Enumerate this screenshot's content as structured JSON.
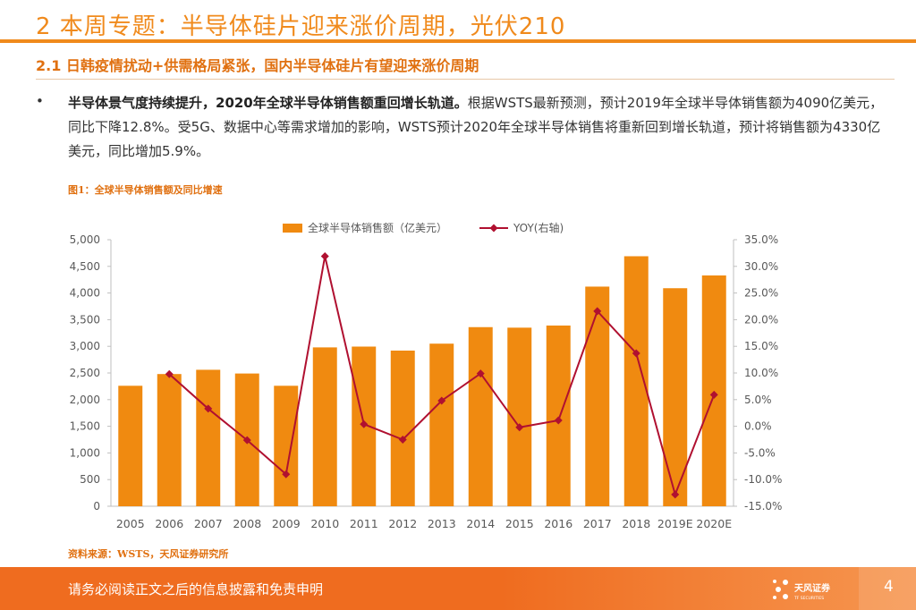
{
  "header": {
    "title": "2 本周专题：半导体硅片迎来涨价周期，光伏210",
    "subtitle": "2.1 日韩疫情扰动+供需格局紧张，国内半导体硅片有望迎来涨价周期"
  },
  "body": {
    "bullet": "•",
    "bold_lead": "半导体景气度持续提升，2020年全球半导体销售额重回增长轨道。",
    "text": "根据WSTS最新预测，预计2019年全球半导体销售额为4090亿美元，同比下降12.8%。受5G、数据中心等需求增加的影响，WSTS预计2020年全球半导体销售将重新回到增长轨道，预计将销售额为4330亿美元，同比增加5.9%。"
  },
  "figure": {
    "caption": "图1：全球半导体销售额及同比增速",
    "source": "资料来源：WSTS，天风证券研究所"
  },
  "chart_data": {
    "type": "bar",
    "categories": [
      "2005",
      "2006",
      "2007",
      "2008",
      "2009",
      "2010",
      "2011",
      "2012",
      "2013",
      "2014",
      "2015",
      "2016",
      "2017",
      "2018",
      "2019E",
      "2020E"
    ],
    "series": [
      {
        "name": "全球半导体销售额（亿美元）",
        "type": "bar",
        "axis": "left",
        "values": [
          2260,
          2480,
          2560,
          2490,
          2260,
          2980,
          2995,
          2920,
          3050,
          3360,
          3350,
          3390,
          4120,
          4690,
          4090,
          4330
        ]
      },
      {
        "name": "YOY(右轴)",
        "type": "line",
        "axis": "right",
        "values": [
          null,
          9.8,
          3.3,
          -2.6,
          -9.0,
          31.9,
          0.4,
          -2.5,
          4.8,
          9.9,
          -0.2,
          1.1,
          21.6,
          13.7,
          -12.8,
          5.9
        ]
      }
    ],
    "y_left": {
      "min": 0,
      "max": 5000,
      "step": 500,
      "ticks": [
        "0",
        "500",
        "1,000",
        "1,500",
        "2,000",
        "2,500",
        "3,000",
        "3,500",
        "4,000",
        "4,500",
        "5,000"
      ]
    },
    "y_right": {
      "min": -15,
      "max": 35,
      "step": 5,
      "ticks": [
        "-15.0%",
        "-10.0%",
        "-5.0%",
        "0.0%",
        "5.0%",
        "10.0%",
        "15.0%",
        "20.0%",
        "25.0%",
        "30.0%",
        "35.0%"
      ]
    },
    "colors": {
      "bar": "#f08a10",
      "line": "#b01030",
      "axis": "#bfbfbf",
      "tick_text": "#595959"
    },
    "legend_position": "top-center"
  },
  "footer": {
    "disclaimer": "请务必阅读正文之后的信息披露和免责申明",
    "logo_text": "天风证券",
    "logo_sub": "TF SECURITIES",
    "page": "4"
  }
}
